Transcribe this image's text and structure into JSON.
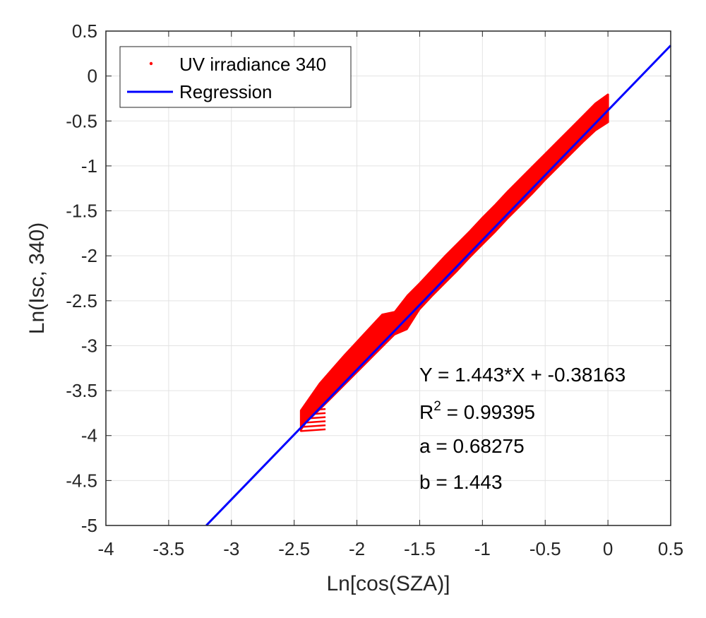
{
  "chart_data": {
    "type": "scatter",
    "xlabel": "Ln[cos(SZA)]",
    "ylabel": "Ln(Isc, 340)",
    "xlim": [
      -4,
      0.5
    ],
    "ylim": [
      -5,
      0.5
    ],
    "x_ticks": [
      "-4",
      "-3.5",
      "-3",
      "-2.5",
      "-2",
      "-1.5",
      "-1",
      "-0.5",
      "0",
      "0.5"
    ],
    "y_ticks": [
      "0.5",
      "0",
      "-0.5",
      "-1",
      "-1.5",
      "-2",
      "-2.5",
      "-3",
      "-3.5",
      "-4",
      "-4.5",
      "-5"
    ],
    "grid": true,
    "legend_position": "top-left",
    "series": [
      {
        "name": "UV irradiance 340",
        "kind": "scatter",
        "color": "#ff0000",
        "x_range": [
          -2.45,
          0
        ],
        "x": [
          -2.45,
          -2.4,
          -2.3,
          -2.2,
          -2.1,
          -2.0,
          -1.9,
          -1.8,
          -1.7,
          -1.6,
          -1.5,
          -1.4,
          -1.3,
          -1.2,
          -1.1,
          -1.0,
          -0.9,
          -0.8,
          -0.7,
          -0.6,
          -0.5,
          -0.4,
          -0.3,
          -0.2,
          -0.1,
          0.0
        ],
        "y_low": [
          -3.95,
          -3.85,
          -3.72,
          -3.58,
          -3.44,
          -3.3,
          -3.16,
          -3.02,
          -2.88,
          -2.82,
          -2.6,
          -2.45,
          -2.31,
          -2.17,
          -2.02,
          -1.88,
          -1.74,
          -1.59,
          -1.45,
          -1.31,
          -1.16,
          -1.02,
          -0.88,
          -0.74,
          -0.61,
          -0.52
        ],
        "y_high": [
          -3.72,
          -3.62,
          -3.42,
          -3.26,
          -3.1,
          -2.95,
          -2.8,
          -2.65,
          -2.62,
          -2.44,
          -2.3,
          -2.15,
          -2.0,
          -1.86,
          -1.72,
          -1.57,
          -1.43,
          -1.28,
          -1.14,
          -1.0,
          -0.86,
          -0.72,
          -0.58,
          -0.44,
          -0.3,
          -0.2
        ]
      },
      {
        "name": "Regression",
        "kind": "line",
        "color": "#0000ff",
        "slope": 1.443,
        "intercept": -0.38163,
        "x": [
          -3.2,
          0.5
        ]
      }
    ],
    "annotations": {
      "equation": "Y = 1.443*X + -0.38163",
      "r2_label": "R",
      "r2_sup": "2",
      "r2_value": " = 0.99395",
      "a": "a = 0.68275",
      "b": "b = 1.443"
    }
  }
}
